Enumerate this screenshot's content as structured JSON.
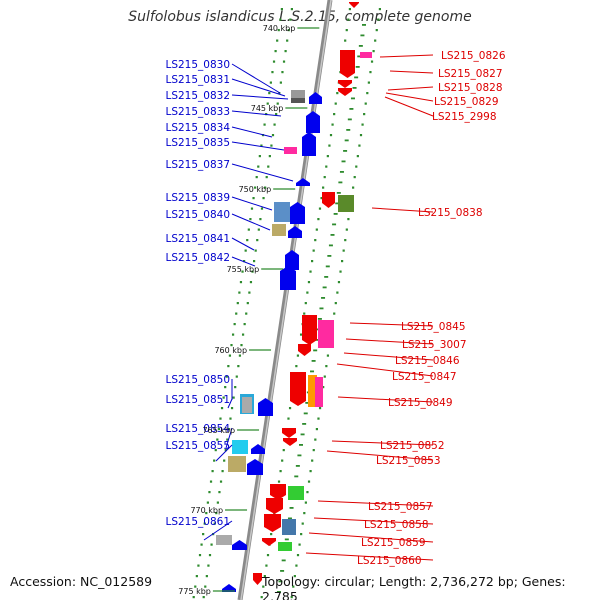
{
  "title": "Sulfolobus islandicus L.S.2.15, complete genome",
  "footer": {
    "accession": "Accession: NC_012589",
    "summary": "Topology: circular; Length: 2,736,272 bp; Genes: 2,785"
  },
  "colors": {
    "forward_label": "#0000cc",
    "reverse_label": "#dd0000",
    "backbone": "#888888",
    "tick": "#228822"
  },
  "scale_labels": [
    "740 kbp",
    "745 kbp",
    "750 kbp",
    "755 kbp",
    "760 kbp",
    "765 kbp",
    "770 kbp",
    "775 kbp"
  ],
  "left_genes": [
    "LS215_0830",
    "LS215_0831",
    "LS215_0832",
    "LS215_0833",
    "LS215_0834",
    "LS215_0835",
    "LS215_0837",
    "LS215_0839",
    "LS215_0840",
    "LS215_0841",
    "LS215_0842",
    "LS215_0850",
    "LS215_0851",
    "LS215_0854",
    "LS215_0855",
    "LS215_0861"
  ],
  "right_genes": [
    "LS215_0826",
    "LS215_0827",
    "LS215_0828",
    "LS215_0829",
    "LS215_2998",
    "LS215_0838",
    "LS215_0845",
    "LS215_3007",
    "LS215_0846",
    "LS215_0847",
    "LS215_0849",
    "LS215_0852",
    "LS215_0853",
    "LS215_0857",
    "LS215_0858",
    "LS215_0859",
    "LS215_0860"
  ]
}
